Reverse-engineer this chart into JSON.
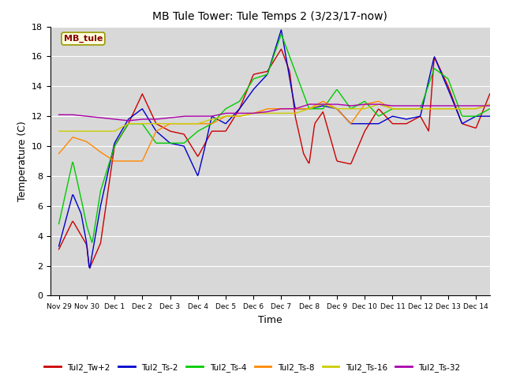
{
  "title": "MB Tule Tower: Tule Temps 2 (3/23/17-now)",
  "xlabel": "Time",
  "ylabel": "Temperature (C)",
  "ylim": [
    0,
    18
  ],
  "xlim": [
    -0.3,
    15.5
  ],
  "background_color": "#ffffff",
  "plot_bg_color": "#d8d8d8",
  "series_colors": {
    "Tul2_Tw+2": "#cc0000",
    "Tul2_Ts-2": "#0000cc",
    "Tul2_Ts-4": "#00cc00",
    "Tul2_Ts-8": "#ff8800",
    "Tul2_Ts-16": "#cccc00",
    "Tul2_Ts-32": "#aa00aa"
  },
  "x_ticks": [
    0,
    1,
    2,
    3,
    4,
    5,
    6,
    7,
    8,
    9,
    10,
    11,
    12,
    13,
    14,
    15
  ],
  "x_tick_labels": [
    "Nov 29",
    "Nov 30",
    "Dec 1",
    "Dec 2",
    "Dec 3",
    "Dec 4",
    "Dec 5",
    "Dec 6",
    "Dec 7",
    "Dec 8",
    "Dec 9",
    "Dec 10",
    "Dec 11",
    "Dec 12",
    "Dec 13",
    "Dec 14"
  ],
  "watermark_text": "MB_tule",
  "watermark_color": "#8b0000",
  "watermark_bg": "#ffffe0",
  "watermark_border": "#999900",
  "tw2_x": [
    0,
    0.5,
    1.0,
    1.1,
    1.5,
    2.0,
    2.5,
    3.0,
    3.5,
    4.0,
    4.5,
    5.0,
    5.5,
    6.0,
    6.5,
    7.0,
    7.5,
    8.0,
    8.3,
    8.5,
    8.8,
    9.0,
    9.2,
    9.5,
    10.0,
    10.5,
    11.0,
    11.5,
    12.0,
    12.5,
    13.0,
    13.3,
    13.5,
    14.0,
    14.5,
    15.0,
    15.5
  ],
  "tw2_y": [
    3.1,
    5.0,
    3.4,
    1.8,
    3.5,
    10.0,
    11.5,
    13.5,
    11.5,
    11.0,
    10.8,
    9.3,
    11.0,
    11.0,
    12.5,
    14.8,
    15.0,
    16.5,
    15.0,
    12.0,
    9.5,
    8.8,
    11.5,
    12.3,
    9.0,
    8.8,
    11.0,
    12.5,
    11.5,
    11.5,
    12.0,
    11.0,
    16.0,
    14.0,
    11.5,
    11.2,
    13.5
  ],
  "ts2_x": [
    0,
    0.5,
    0.8,
    1.0,
    1.1,
    1.5,
    2.0,
    2.5,
    3.0,
    3.5,
    4.0,
    4.5,
    5.0,
    5.2,
    5.5,
    6.0,
    6.5,
    7.0,
    7.5,
    8.0,
    8.3,
    8.5,
    9.0,
    9.5,
    10.0,
    10.5,
    11.0,
    11.5,
    12.0,
    12.5,
    13.0,
    13.5,
    14.0,
    14.5,
    15.0,
    15.5
  ],
  "ts2_y": [
    3.3,
    6.8,
    5.5,
    3.5,
    1.7,
    6.0,
    10.2,
    11.8,
    12.5,
    11.0,
    10.2,
    10.0,
    8.0,
    9.5,
    12.0,
    11.5,
    12.5,
    13.8,
    14.8,
    17.8,
    14.5,
    12.5,
    12.5,
    12.7,
    12.5,
    11.5,
    11.5,
    11.5,
    12.0,
    11.8,
    12.0,
    16.0,
    13.8,
    11.5,
    12.0,
    12.0
  ],
  "ts4_x": [
    0,
    0.5,
    0.8,
    1.0,
    1.2,
    1.5,
    2.0,
    2.5,
    3.0,
    3.5,
    4.0,
    4.5,
    5.0,
    5.5,
    6.0,
    6.5,
    7.0,
    7.5,
    8.0,
    8.5,
    8.8,
    9.0,
    9.5,
    10.0,
    10.5,
    11.0,
    11.5,
    12.0,
    12.5,
    13.0,
    13.5,
    14.0,
    14.5,
    15.0,
    15.5
  ],
  "ts4_y": [
    4.8,
    9.0,
    6.5,
    4.7,
    3.5,
    7.0,
    10.0,
    11.5,
    11.5,
    10.2,
    10.2,
    10.2,
    11.0,
    11.5,
    12.5,
    13.0,
    14.5,
    14.8,
    17.5,
    15.0,
    13.5,
    12.5,
    12.5,
    13.8,
    12.5,
    13.0,
    12.0,
    12.5,
    12.5,
    12.5,
    15.2,
    14.5,
    12.0,
    12.0,
    12.5
  ],
  "ts8_x": [
    0,
    0.5,
    1.0,
    1.5,
    2.0,
    2.5,
    3.0,
    3.5,
    4.0,
    4.5,
    5.0,
    5.5,
    6.0,
    6.5,
    7.0,
    7.5,
    8.0,
    8.5,
    9.0,
    9.5,
    10.0,
    10.5,
    11.0,
    11.5,
    12.0,
    12.5,
    13.0,
    13.5,
    14.0,
    14.5,
    15.0,
    15.5
  ],
  "ts8_y": [
    9.5,
    10.6,
    10.3,
    9.6,
    9.0,
    9.0,
    9.0,
    11.0,
    11.5,
    11.5,
    11.5,
    11.5,
    12.0,
    12.0,
    12.2,
    12.5,
    12.5,
    12.5,
    12.5,
    13.0,
    12.5,
    11.5,
    12.8,
    13.0,
    12.5,
    12.5,
    12.5,
    12.5,
    12.5,
    12.5,
    12.5,
    12.8
  ],
  "ts16_x": [
    0,
    0.5,
    1.0,
    1.5,
    2.0,
    2.5,
    3.0,
    3.5,
    4.0,
    4.5,
    5.0,
    5.5,
    6.0,
    6.5,
    7.0,
    7.5,
    8.0,
    8.5,
    9.0,
    9.5,
    10.0,
    10.5,
    11.0,
    11.5,
    12.0,
    12.5,
    13.0,
    13.5,
    14.0,
    14.5,
    15.0,
    15.5
  ],
  "ts16_y": [
    11.0,
    11.0,
    11.0,
    11.0,
    11.0,
    11.5,
    11.5,
    11.5,
    11.5,
    11.5,
    11.5,
    11.8,
    12.0,
    12.0,
    12.2,
    12.2,
    12.2,
    12.2,
    12.5,
    12.8,
    12.5,
    12.5,
    12.5,
    12.8,
    12.5,
    12.5,
    12.5,
    12.5,
    12.5,
    12.5,
    12.5,
    12.8
  ],
  "ts32_x": [
    0,
    0.5,
    1.0,
    1.5,
    2.0,
    2.5,
    3.0,
    3.5,
    4.0,
    4.5,
    5.0,
    5.5,
    6.0,
    6.5,
    7.0,
    7.5,
    8.0,
    8.5,
    9.0,
    9.5,
    10.0,
    10.5,
    11.0,
    11.5,
    12.0,
    12.5,
    13.0,
    13.5,
    14.0,
    14.5,
    15.0,
    15.5
  ],
  "ts32_y": [
    12.1,
    12.1,
    12.0,
    11.9,
    11.8,
    11.7,
    11.8,
    11.8,
    11.9,
    12.0,
    12.0,
    12.0,
    12.2,
    12.2,
    12.2,
    12.3,
    12.5,
    12.5,
    12.8,
    12.8,
    12.8,
    12.7,
    12.8,
    12.8,
    12.7,
    12.7,
    12.7,
    12.7,
    12.7,
    12.7,
    12.7,
    12.7
  ]
}
